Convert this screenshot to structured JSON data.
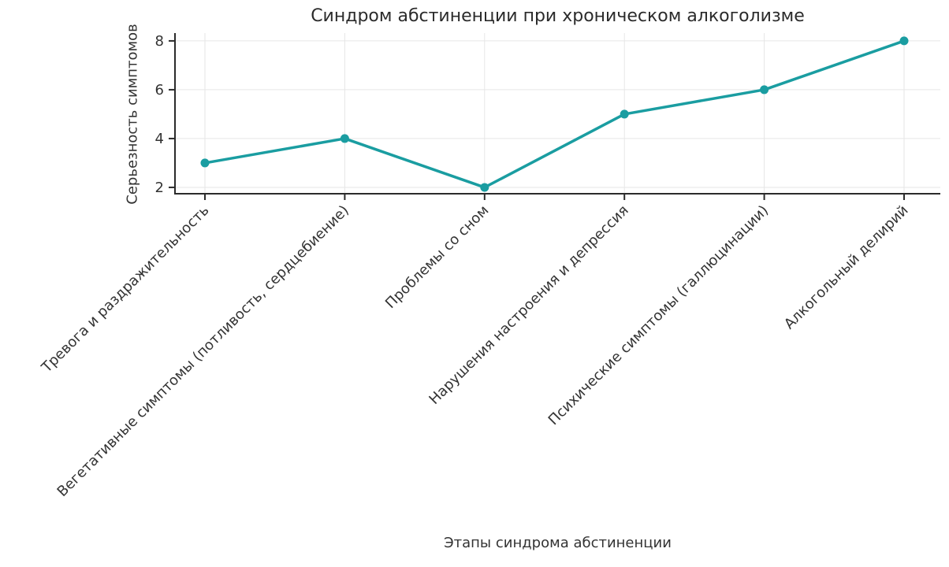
{
  "chart_data": {
    "type": "line",
    "title": "Синдром абстиненции при хроническом алкоголизме",
    "xlabel": "Этапы синдрома абстиненции",
    "ylabel": "Серьезность симптомов",
    "categories": [
      "Тревога и раздражительность",
      "Вегетативные симптомы (потливость, сердцебиение)",
      "Проблемы со сном",
      "Нарушения настроения и депрессия",
      "Психические симптомы (галлюцинации)",
      "Алкогольный делирий"
    ],
    "values": [
      3,
      4,
      2,
      5,
      6,
      8
    ],
    "yticks": [
      2,
      4,
      6,
      8
    ],
    "ylim": [
      1.74,
      8.32
    ],
    "grid": true,
    "legend": "none",
    "x_tick_rotation_deg": 45,
    "line_color": "#1a9da1",
    "marker": "circle",
    "grid_color": "#e6e6e6",
    "axis_color": "#2b2b2b",
    "tick_label_color": "#333333",
    "background_color": "#ffffff"
  }
}
